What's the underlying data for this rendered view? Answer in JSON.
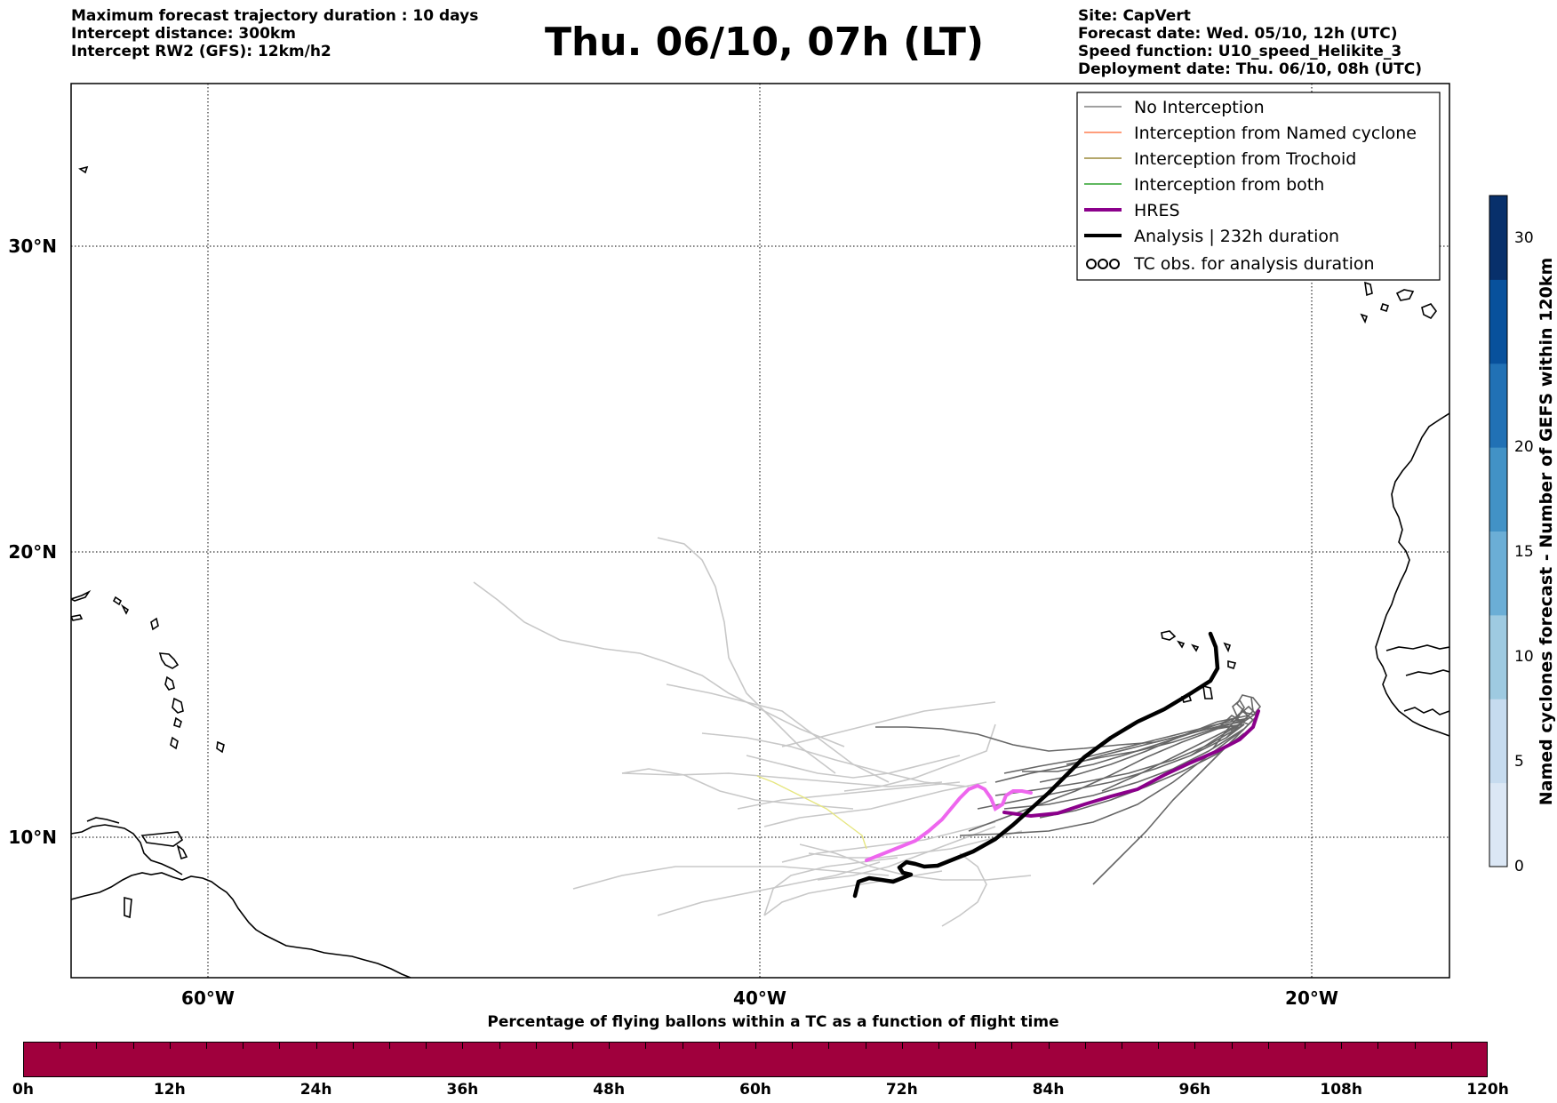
{
  "header_left": [
    "Maximum forecast trajectory duration : 10 days",
    "Intercept distance: 300km",
    "Intercept RW2 (GFS):  12km/h2"
  ],
  "title": "Thu. 06/10, 07h (LT)",
  "header_right": [
    "Site: CapVert",
    "Forecast date: Wed. 05/10, 12h (UTC)",
    "Speed function: U10_speed_Helikite_3",
    "Deployment date: Thu. 06/10, 08h (UTC)"
  ],
  "map": {
    "lon_ticks": [
      {
        "lon": -60,
        "label": "60°W"
      },
      {
        "lon": -40,
        "label": "40°W"
      },
      {
        "lon": -20,
        "label": "20°W"
      }
    ],
    "lat_ticks": [
      {
        "lat": 10,
        "label": "10°N"
      },
      {
        "lat": 20,
        "label": "20°N"
      },
      {
        "lat": 30,
        "label": "30°N"
      }
    ],
    "grid": true
  },
  "legend": {
    "items": [
      {
        "label": "No Interception",
        "color": "#808080",
        "style": "line-thin"
      },
      {
        "label": "Interception from Named cyclone",
        "color": "#ff7f50",
        "style": "line-thin"
      },
      {
        "label": "Interception from Trochoid",
        "color": "#9b8a3a",
        "style": "line-thin"
      },
      {
        "label": "Interception from both",
        "color": "#2ca02c",
        "style": "line-thin"
      },
      {
        "label": "HRES",
        "color": "#8b008b",
        "style": "line-thick"
      },
      {
        "label": "Analysis | 232h duration",
        "color": "#000000",
        "style": "line-thick"
      },
      {
        "label": "TC obs. for analysis duration",
        "color": "#000000",
        "style": "tc-symbols"
      }
    ]
  },
  "colorbar_right": {
    "label": "Named cyclones forecast - Number of GEFS within 120km",
    "ticks": [
      "0",
      "5",
      "10",
      "15",
      "20",
      "30"
    ],
    "colors": [
      "#dbe7f5",
      "#c6dbef",
      "#9ecae1",
      "#6baed6",
      "#4292c6",
      "#2171b5",
      "#08519c",
      "#08306b"
    ]
  },
  "bottom_colorbar": {
    "label": "Percentage of flying ballons within a TC as a function of flight time",
    "ticks": [
      "0h",
      "12h",
      "24h",
      "36h",
      "48h",
      "60h",
      "72h",
      "84h",
      "96h",
      "108h",
      "120h"
    ],
    "color": "#a0003d"
  }
}
